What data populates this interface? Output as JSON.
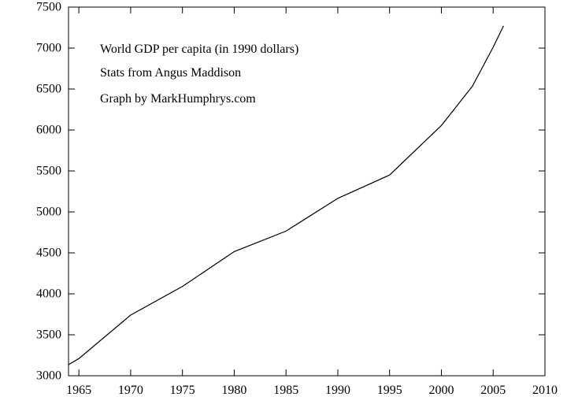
{
  "chart_data": {
    "type": "line",
    "title": "",
    "xlabel": "",
    "ylabel": "",
    "xlim": [
      1964,
      2010
    ],
    "ylim": [
      3000,
      7500
    ],
    "xticks": [
      1965,
      1970,
      1975,
      1980,
      1985,
      1990,
      1995,
      2000,
      2005,
      2010
    ],
    "yticks": [
      3000,
      3500,
      4000,
      4500,
      5000,
      5500,
      6000,
      6500,
      7000,
      7500
    ],
    "grid": false,
    "legend": "none",
    "annotations": [
      "World GDP per capita (in 1990 dollars)",
      "Stats from Angus Maddison",
      "Graph by MarkHumphrys.com"
    ],
    "series": [
      {
        "name": "World GDP per capita",
        "x": [
          1964,
          1965,
          1970,
          1975,
          1980,
          1985,
          1990,
          1995,
          2000,
          2003,
          2005,
          2006
        ],
        "y": [
          3135,
          3210,
          3740,
          4090,
          4515,
          4765,
          5165,
          5450,
          6055,
          6535,
          7010,
          7270
        ]
      }
    ]
  }
}
